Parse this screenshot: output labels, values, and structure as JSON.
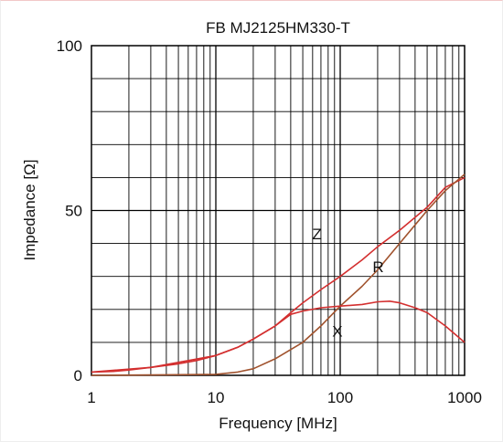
{
  "chart_data": {
    "type": "line",
    "title": "FB  MJ2125HM330-T",
    "xlabel": "Frequency [MHz]",
    "ylabel": "Impedance [Ω]",
    "x_scale": "log",
    "xlim": [
      1,
      1000
    ],
    "ylim": [
      0,
      100
    ],
    "x_ticks": [
      1,
      10,
      100,
      1000
    ],
    "x_tick_labels": [
      "1",
      "10",
      "100",
      "1000"
    ],
    "y_ticks": [
      0,
      50,
      100
    ],
    "y_tick_labels": [
      "0",
      "50",
      "100"
    ],
    "grid": true,
    "series": [
      {
        "name": "Z",
        "color": "#d32f2f",
        "x": [
          1,
          1.5,
          2,
          3,
          5,
          7,
          10,
          15,
          20,
          30,
          40,
          50,
          70,
          100,
          150,
          200,
          300,
          500,
          700,
          1000
        ],
        "y": [
          1,
          1.2,
          1.6,
          2.4,
          3.5,
          4.5,
          6,
          8.5,
          11,
          15,
          19,
          22,
          26,
          30,
          35,
          39,
          44,
          51,
          57,
          60
        ]
      },
      {
        "name": "R",
        "color": "#a0522d",
        "x": [
          1,
          3,
          10,
          15,
          20,
          30,
          50,
          70,
          100,
          150,
          200,
          300,
          500,
          700,
          1000
        ],
        "y": [
          0,
          0.1,
          0.3,
          1,
          2,
          5,
          10,
          15,
          21,
          27,
          32,
          40,
          50,
          56,
          61
        ]
      },
      {
        "name": "X",
        "color": "#d32f2f",
        "x": [
          1,
          3,
          10,
          15,
          20,
          30,
          40,
          50,
          70,
          100,
          150,
          200,
          250,
          300,
          400,
          500,
          700,
          1000
        ],
        "y": [
          1,
          2.4,
          6,
          8.5,
          11,
          15,
          18.5,
          19.5,
          20.5,
          21,
          21.5,
          22.3,
          22.5,
          22,
          20.5,
          19,
          15,
          10
        ]
      }
    ],
    "annotations": [
      {
        "text": "Z",
        "series": "Z"
      },
      {
        "text": "R",
        "series": "R"
      },
      {
        "text": "X",
        "series": "X"
      }
    ]
  }
}
